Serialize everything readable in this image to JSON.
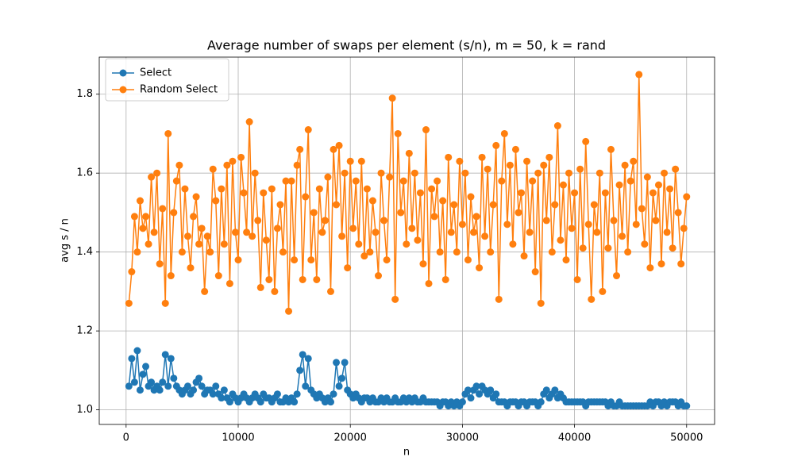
{
  "chart_data": {
    "type": "line",
    "title": "Average number of swaps per element (s/n), m = 50, k = rand",
    "x_label": "n",
    "y_label": "avg s / n",
    "xlim": [
      -2395,
      52495
    ],
    "ylim": [
      0.963,
      1.894
    ],
    "xticks": [
      0,
      10000,
      20000,
      30000,
      40000,
      50000
    ],
    "yticks": [
      {
        "value": 1.0,
        "label": "1.0"
      },
      {
        "value": 1.2,
        "label": "1.2"
      },
      {
        "value": 1.4,
        "label": "1.4"
      },
      {
        "value": 1.6,
        "label": "1.6"
      },
      {
        "value": 1.8,
        "label": "1.8"
      }
    ],
    "grid": true,
    "legend": "upper left",
    "x": [
      250,
      500,
      750,
      1000,
      1250,
      1500,
      1750,
      2000,
      2250,
      2500,
      2750,
      3000,
      3250,
      3500,
      3750,
      4000,
      4250,
      4500,
      4750,
      5000,
      5250,
      5500,
      5750,
      6000,
      6250,
      6500,
      6750,
      7000,
      7250,
      7500,
      7750,
      8000,
      8250,
      8500,
      8750,
      9000,
      9250,
      9500,
      9750,
      10000,
      10250,
      10500,
      10750,
      11000,
      11250,
      11500,
      11750,
      12000,
      12250,
      12500,
      12750,
      13000,
      13250,
      13500,
      13750,
      14000,
      14250,
      14500,
      14750,
      15000,
      15250,
      15500,
      15750,
      16000,
      16250,
      16500,
      16750,
      17000,
      17250,
      17500,
      17750,
      18000,
      18250,
      18500,
      18750,
      19000,
      19250,
      19500,
      19750,
      20000,
      20250,
      20500,
      20750,
      21000,
      21250,
      21500,
      21750,
      22000,
      22250,
      22500,
      22750,
      23000,
      23250,
      23500,
      23750,
      24000,
      24250,
      24500,
      24750,
      25000,
      25250,
      25500,
      25750,
      26000,
      26250,
      26500,
      26750,
      27000,
      27250,
      27500,
      27750,
      28000,
      28250,
      28500,
      28750,
      29000,
      29250,
      29500,
      29750,
      30000,
      30250,
      30500,
      30750,
      31000,
      31250,
      31500,
      31750,
      32000,
      32250,
      32500,
      32750,
      33000,
      33250,
      33500,
      33750,
      34000,
      34250,
      34500,
      34750,
      35000,
      35250,
      35500,
      35750,
      36000,
      36250,
      36500,
      36750,
      37000,
      37250,
      37500,
      37750,
      38000,
      38250,
      38500,
      38750,
      39000,
      39250,
      39500,
      39750,
      40000,
      40250,
      40500,
      40750,
      41000,
      41250,
      41500,
      41750,
      42000,
      42250,
      42500,
      42750,
      43000,
      43250,
      43500,
      43750,
      44000,
      44250,
      44500,
      44750,
      45000,
      45250,
      45500,
      45750,
      46000,
      46250,
      46500,
      46750,
      47000,
      47250,
      47500,
      47750,
      48000,
      48250,
      48500,
      48750,
      49000,
      49250,
      49500,
      49750,
      50000
    ],
    "series": [
      {
        "name": "Select",
        "color": "#1f77b4",
        "values": [
          1.06,
          1.13,
          1.07,
          1.15,
          1.05,
          1.09,
          1.11,
          1.06,
          1.07,
          1.05,
          1.06,
          1.05,
          1.07,
          1.14,
          1.06,
          1.13,
          1.08,
          1.06,
          1.05,
          1.04,
          1.05,
          1.06,
          1.04,
          1.05,
          1.07,
          1.08,
          1.06,
          1.04,
          1.05,
          1.05,
          1.04,
          1.06,
          1.04,
          1.03,
          1.05,
          1.03,
          1.02,
          1.04,
          1.03,
          1.02,
          1.03,
          1.04,
          1.03,
          1.02,
          1.03,
          1.04,
          1.03,
          1.02,
          1.04,
          1.03,
          1.03,
          1.02,
          1.03,
          1.04,
          1.02,
          1.02,
          1.03,
          1.02,
          1.03,
          1.02,
          1.04,
          1.1,
          1.14,
          1.06,
          1.13,
          1.05,
          1.04,
          1.03,
          1.04,
          1.03,
          1.02,
          1.03,
          1.02,
          1.04,
          1.12,
          1.06,
          1.08,
          1.12,
          1.05,
          1.04,
          1.03,
          1.04,
          1.03,
          1.02,
          1.03,
          1.03,
          1.02,
          1.03,
          1.02,
          1.02,
          1.03,
          1.02,
          1.03,
          1.02,
          1.02,
          1.03,
          1.02,
          1.02,
          1.03,
          1.02,
          1.03,
          1.02,
          1.03,
          1.02,
          1.02,
          1.03,
          1.02,
          1.02,
          1.02,
          1.02,
          1.02,
          1.01,
          1.02,
          1.02,
          1.01,
          1.02,
          1.01,
          1.02,
          1.01,
          1.02,
          1.04,
          1.05,
          1.03,
          1.05,
          1.06,
          1.04,
          1.06,
          1.05,
          1.04,
          1.05,
          1.03,
          1.04,
          1.02,
          1.02,
          1.02,
          1.01,
          1.02,
          1.02,
          1.02,
          1.01,
          1.02,
          1.02,
          1.01,
          1.02,
          1.02,
          1.02,
          1.01,
          1.02,
          1.04,
          1.05,
          1.03,
          1.04,
          1.05,
          1.03,
          1.04,
          1.03,
          1.02,
          1.02,
          1.02,
          1.02,
          1.02,
          1.02,
          1.02,
          1.01,
          1.02,
          1.02,
          1.02,
          1.02,
          1.02,
          1.02,
          1.02,
          1.01,
          1.02,
          1.01,
          1.01,
          1.02,
          1.01,
          1.01,
          1.01,
          1.01,
          1.01,
          1.01,
          1.01,
          1.01,
          1.01,
          1.01,
          1.02,
          1.01,
          1.02,
          1.02,
          1.01,
          1.02,
          1.01,
          1.02,
          1.02,
          1.02,
          1.01,
          1.02,
          1.01,
          1.01
        ]
      },
      {
        "name": "Random Select",
        "color": "#ff7f0e",
        "values": [
          1.27,
          1.35,
          1.49,
          1.4,
          1.53,
          1.46,
          1.49,
          1.42,
          1.59,
          1.45,
          1.6,
          1.37,
          1.51,
          1.27,
          1.7,
          1.34,
          1.5,
          1.58,
          1.62,
          1.4,
          1.56,
          1.44,
          1.36,
          1.49,
          1.54,
          1.42,
          1.46,
          1.3,
          1.44,
          1.4,
          1.61,
          1.53,
          1.34,
          1.56,
          1.42,
          1.62,
          1.32,
          1.63,
          1.45,
          1.38,
          1.64,
          1.55,
          1.45,
          1.73,
          1.44,
          1.6,
          1.48,
          1.31,
          1.55,
          1.43,
          1.33,
          1.56,
          1.3,
          1.46,
          1.52,
          1.4,
          1.58,
          1.25,
          1.58,
          1.38,
          1.62,
          1.66,
          1.33,
          1.54,
          1.71,
          1.38,
          1.5,
          1.33,
          1.56,
          1.45,
          1.48,
          1.59,
          1.3,
          1.66,
          1.52,
          1.67,
          1.44,
          1.6,
          1.36,
          1.63,
          1.46,
          1.58,
          1.42,
          1.63,
          1.39,
          1.56,
          1.4,
          1.53,
          1.45,
          1.34,
          1.6,
          1.48,
          1.38,
          1.59,
          1.79,
          1.28,
          1.7,
          1.5,
          1.58,
          1.42,
          1.65,
          1.46,
          1.6,
          1.43,
          1.55,
          1.37,
          1.71,
          1.32,
          1.56,
          1.49,
          1.58,
          1.4,
          1.53,
          1.33,
          1.64,
          1.45,
          1.52,
          1.4,
          1.63,
          1.47,
          1.6,
          1.38,
          1.54,
          1.45,
          1.49,
          1.36,
          1.64,
          1.44,
          1.61,
          1.4,
          1.52,
          1.67,
          1.28,
          1.58,
          1.7,
          1.47,
          1.62,
          1.42,
          1.66,
          1.5,
          1.55,
          1.39,
          1.63,
          1.45,
          1.58,
          1.35,
          1.6,
          1.27,
          1.62,
          1.48,
          1.64,
          1.4,
          1.52,
          1.72,
          1.43,
          1.57,
          1.38,
          1.6,
          1.46,
          1.55,
          1.33,
          1.61,
          1.41,
          1.68,
          1.47,
          1.28,
          1.52,
          1.45,
          1.6,
          1.3,
          1.55,
          1.41,
          1.66,
          1.48,
          1.34,
          1.57,
          1.44,
          1.62,
          1.4,
          1.58,
          1.63,
          1.47,
          1.85,
          1.51,
          1.42,
          1.59,
          1.36,
          1.55,
          1.48,
          1.57,
          1.37,
          1.6,
          1.45,
          1.56,
          1.41,
          1.61,
          1.5,
          1.37,
          1.46,
          1.54
        ]
      }
    ]
  }
}
